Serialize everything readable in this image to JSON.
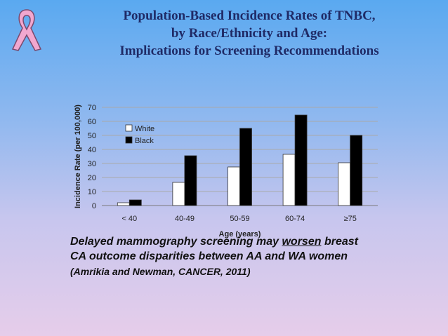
{
  "title": {
    "line1": "Population-Based Incidence Rates of TNBC,",
    "line2": "by Race/Ethnicity and Age:",
    "line3": "Implications for Screening Recommendations"
  },
  "caption": {
    "line1": "Delayed mammography screening may",
    "emphasis": "worsen",
    "line1_end": "breast",
    "line2": "CA outcome disparities between AA and WA women",
    "citation": "(Amrikia and Newman, CANCER, 2011)"
  },
  "logo": {
    "icon": "pink-ribbon-icon",
    "color": "#f2a7cf"
  },
  "chart_data": {
    "type": "bar",
    "categories": [
      "< 40",
      "40-49",
      "50-59",
      "60-74",
      "≥75"
    ],
    "series": [
      {
        "name": "White",
        "values": [
          2,
          16.5,
          27.5,
          36.5,
          30.5
        ],
        "color": "#ffffff"
      },
      {
        "name": "Black",
        "values": [
          4,
          35.5,
          55,
          64.5,
          50
        ],
        "color": "#000000"
      }
    ],
    "xlabel": "Age (years)",
    "ylabel": "Incidence Rate (per 100,000)",
    "ylim": [
      0,
      70
    ],
    "yticks": [
      0,
      10,
      20,
      30,
      40,
      50,
      60,
      70
    ],
    "grid": true,
    "legend": "top-left"
  }
}
